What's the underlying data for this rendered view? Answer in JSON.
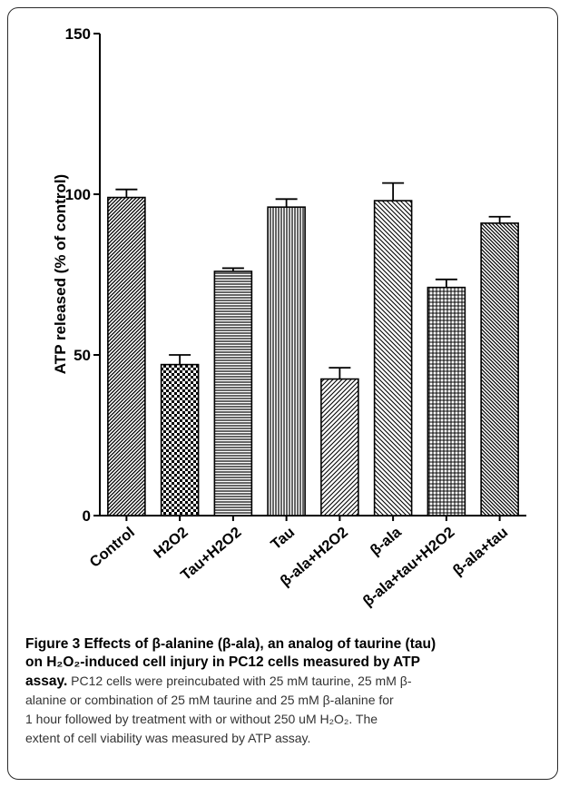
{
  "chart_data": {
    "type": "bar",
    "title": "",
    "xlabel": "",
    "ylabel": "ATP released (% of control)",
    "ylim": [
      0,
      150
    ],
    "yticks": [
      0,
      50,
      100,
      150
    ],
    "categories": [
      "Control",
      "H2O2",
      "Tau+H2O2",
      "Tau",
      "β-ala+H2O2",
      "β-ala",
      "β-ala+tau+H2O2",
      "β-ala+tau"
    ],
    "series": [
      {
        "values": [
          99,
          47,
          76,
          96,
          42.5,
          98,
          71,
          91
        ],
        "errors": [
          2.5,
          3,
          1,
          2.5,
          3.5,
          5.5,
          2.5,
          2
        ]
      }
    ],
    "patterns": [
      "diag-dense-right",
      "checker",
      "horizontal",
      "vertical",
      "diag-right",
      "diag-left",
      "crosshatch",
      "diag-left-dense"
    ],
    "grid": false,
    "legend": "none"
  },
  "caption": {
    "title_lines": [
      "Figure 3 Effects of β-alanine (β-ala), an analog of taurine (tau)",
      "on H₂O₂-induced cell injury in PC12 cells measured by ATP",
      "assay."
    ],
    "body_first": "PC12 cells were preincubated with 25 mM taurine, 25 mM β-",
    "body_lines": [
      "alanine or combination of 25 mM taurine and 25 mM β-alanine for",
      "1 hour followed by treatment with or without 250 uM H₂O₂. The",
      "extent of cell viability was measured by ATP assay."
    ]
  }
}
